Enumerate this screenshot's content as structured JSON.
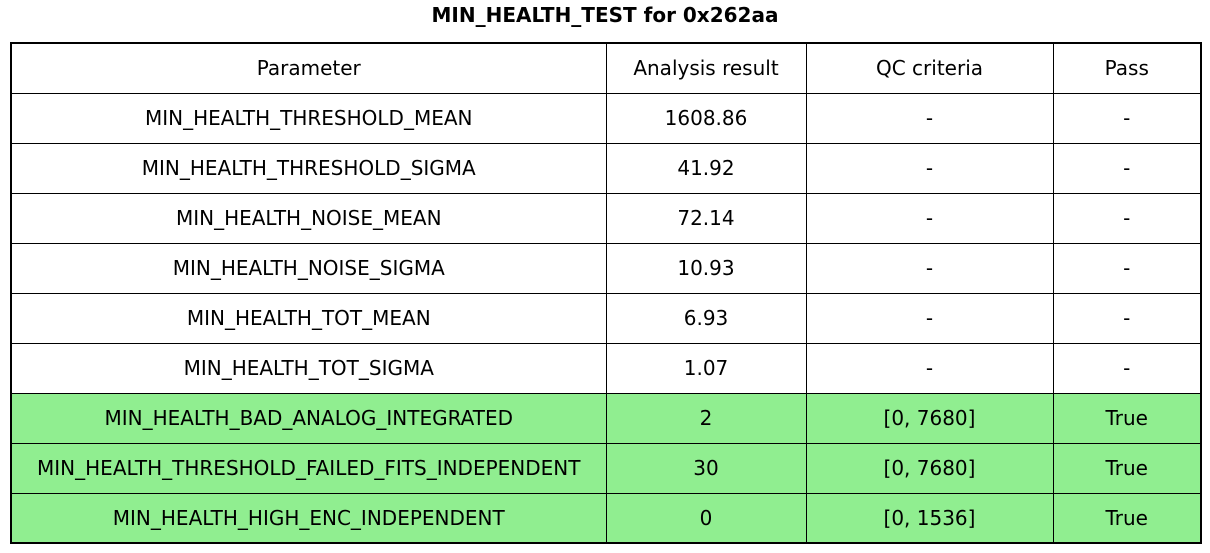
{
  "title": "MIN_HEALTH_TEST for 0x262aa",
  "colors": {
    "highlight": "#90ee90",
    "border": "#000000",
    "background": "#ffffff",
    "text": "#000000"
  },
  "chart_data": {
    "type": "table",
    "title": "MIN_HEALTH_TEST for 0x262aa",
    "columns": [
      "Parameter",
      "Analysis result",
      "QC criteria",
      "Pass"
    ],
    "rows": [
      [
        "MIN_HEALTH_THRESHOLD_MEAN",
        "1608.86",
        "-",
        "-"
      ],
      [
        "MIN_HEALTH_THRESHOLD_SIGMA",
        "41.92",
        "-",
        "-"
      ],
      [
        "MIN_HEALTH_NOISE_MEAN",
        "72.14",
        "-",
        "-"
      ],
      [
        "MIN_HEALTH_NOISE_SIGMA",
        "10.93",
        "-",
        "-"
      ],
      [
        "MIN_HEALTH_TOT_MEAN",
        "6.93",
        "-",
        "-"
      ],
      [
        "MIN_HEALTH_TOT_SIGMA",
        "1.07",
        "-",
        "-"
      ],
      [
        "MIN_HEALTH_BAD_ANALOG_INTEGRATED",
        "2",
        "[0, 7680]",
        "True"
      ],
      [
        "MIN_HEALTH_THRESHOLD_FAILED_FITS_INDEPENDENT",
        "30",
        "[0, 7680]",
        "True"
      ],
      [
        "MIN_HEALTH_HIGH_ENC_INDEPENDENT",
        "0",
        "[0, 1536]",
        "True"
      ]
    ],
    "highlighted_rows": [
      6,
      7,
      8
    ],
    "highlight_color": "#90ee90",
    "grid": true,
    "layout": "header row on top; last three rows highlighted green indicating Pass = True"
  }
}
